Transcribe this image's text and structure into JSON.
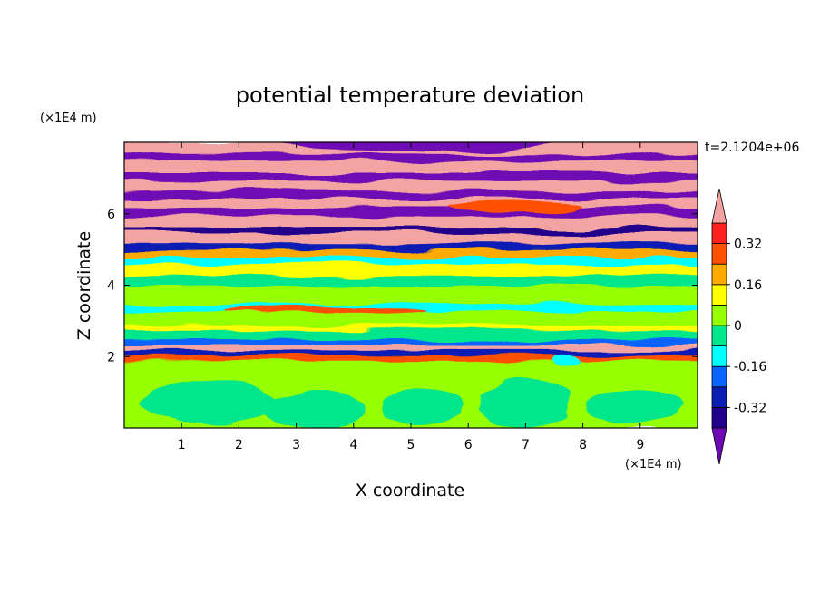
{
  "chart_data": {
    "type": "heatmap",
    "title": "potential temperature deviation",
    "xlabel": "X coordinate",
    "ylabel": "Z coordinate",
    "x_unit": "(×1E4 m)",
    "y_unit": "(×1E4 m)",
    "time_label": "t=2.1204e+06",
    "xlim": [
      0,
      10
    ],
    "ylim": [
      0,
      8
    ],
    "x_ticks": [
      1,
      2,
      3,
      4,
      5,
      6,
      7,
      8,
      9
    ],
    "y_ticks": [
      2,
      4,
      6
    ],
    "x_tick_labels": [
      "1",
      "2",
      "3",
      "4",
      "5",
      "6",
      "7",
      "8",
      "9"
    ],
    "y_tick_labels": [
      "2",
      "4",
      "6"
    ],
    "colorbar": {
      "levels": [
        -0.4,
        -0.32,
        -0.24,
        -0.16,
        -0.08,
        0,
        0.08,
        0.16,
        0.24,
        0.32,
        0.4
      ],
      "colors": [
        "#6e0ab4",
        "#21008c",
        "#0a1eb4",
        "#0a64ff",
        "#00ffff",
        "#00e68c",
        "#96ff00",
        "#ffff00",
        "#ffaa00",
        "#ff5000",
        "#ff2020",
        "#f4a3a3"
      ],
      "labels": [
        "0.32",
        "0.16",
        "0",
        "-0.16",
        "-0.32"
      ],
      "label_values": [
        0.32,
        0.16,
        0,
        -0.16,
        -0.32
      ],
      "extend": "both"
    },
    "bands": [
      {
        "z0": 0.0,
        "z1": 1.5,
        "value": 0.04
      },
      {
        "z0": 1.5,
        "z1": 1.9,
        "value": 0.06
      },
      {
        "z0": 1.9,
        "z1": 2.05,
        "value": 0.3
      },
      {
        "z0": 2.05,
        "z1": 2.2,
        "value": -0.3
      },
      {
        "z0": 2.2,
        "z1": 2.35,
        "value": 0.42
      },
      {
        "z0": 2.35,
        "z1": 2.5,
        "value": -0.2
      },
      {
        "z0": 2.5,
        "z1": 2.75,
        "value": -0.05
      },
      {
        "z0": 2.75,
        "z1": 2.9,
        "value": 0.1
      },
      {
        "z0": 2.9,
        "z1": 3.3,
        "value": 0.05
      },
      {
        "z0": 3.3,
        "z1": 3.5,
        "value": -0.12
      },
      {
        "z0": 3.5,
        "z1": 4.0,
        "value": 0.06
      },
      {
        "z0": 4.0,
        "z1": 4.3,
        "value": -0.04
      },
      {
        "z0": 4.3,
        "z1": 4.6,
        "value": 0.08
      },
      {
        "z0": 4.6,
        "z1": 4.8,
        "value": -0.14
      },
      {
        "z0": 4.8,
        "z1": 5.0,
        "value": 0.2
      },
      {
        "z0": 5.0,
        "z1": 5.2,
        "value": -0.28
      },
      {
        "z0": 5.2,
        "z1": 5.5,
        "value": 0.42
      },
      {
        "z0": 5.5,
        "z1": 5.65,
        "value": -0.36
      },
      {
        "z0": 5.65,
        "z1": 5.95,
        "value": 0.42
      },
      {
        "z0": 5.95,
        "z1": 6.2,
        "value": -0.42
      },
      {
        "z0": 6.2,
        "z1": 6.45,
        "value": 0.42
      },
      {
        "z0": 6.45,
        "z1": 6.65,
        "value": -0.42
      },
      {
        "z0": 6.65,
        "z1": 6.95,
        "value": 0.42
      },
      {
        "z0": 6.95,
        "z1": 7.2,
        "value": -0.42
      },
      {
        "z0": 7.2,
        "z1": 7.5,
        "value": 0.42
      },
      {
        "z0": 7.5,
        "z1": 7.7,
        "value": -0.42
      },
      {
        "z0": 7.7,
        "z1": 8.0,
        "value": 0.42
      }
    ],
    "blobs": [
      {
        "x": 1.5,
        "z": 0.7,
        "rx": 1.2,
        "rz": 0.6,
        "value": -0.02
      },
      {
        "x": 3.3,
        "z": 0.5,
        "rx": 0.9,
        "rz": 0.5,
        "value": -0.02
      },
      {
        "x": 5.2,
        "z": 0.6,
        "rx": 0.7,
        "rz": 0.55,
        "value": -0.02
      },
      {
        "x": 7.0,
        "z": 0.7,
        "rx": 0.8,
        "rz": 0.7,
        "value": -0.02
      },
      {
        "x": 8.9,
        "z": 0.6,
        "rx": 0.8,
        "rz": 0.5,
        "value": -0.02
      },
      {
        "x": 7.7,
        "z": 1.9,
        "rx": 0.25,
        "rz": 0.15,
        "value": -0.12
      },
      {
        "x": 5.0,
        "z": 7.95,
        "rx": 2.5,
        "rz": 0.2,
        "value": -0.42
      },
      {
        "x": 6.8,
        "z": 6.2,
        "rx": 1.2,
        "rz": 0.15,
        "value": 0.3
      },
      {
        "x": 3.5,
        "z": 3.3,
        "rx": 1.8,
        "rz": 0.1,
        "value": 0.25
      }
    ]
  }
}
